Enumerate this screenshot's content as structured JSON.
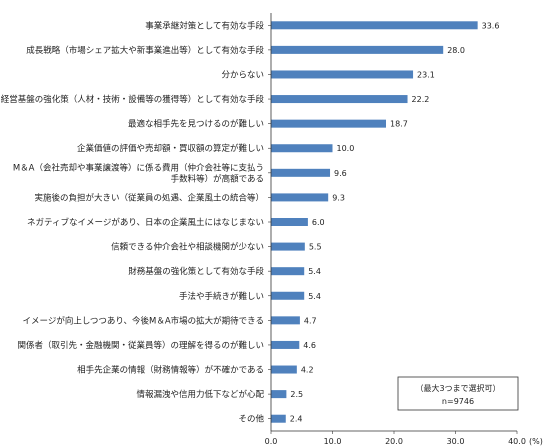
{
  "chart_data": {
    "type": "bar",
    "orientation": "horizontal",
    "categories": [
      [
        "事業承継対策として有効な手段"
      ],
      [
        "成長戦略（市場シェア拡大や新事業進出等）として有効な手段"
      ],
      [
        "分からない"
      ],
      [
        "経営基盤の強化策（人材・技術・設備等の獲得等）として有効な手段"
      ],
      [
        "最適な相手先を見つけるのが難しい"
      ],
      [
        "企業価値の評価や売却額・買収額の算定が難しい"
      ],
      [
        "M＆A（会社売却や事業譲渡等）に係る費用（仲介会社等に支払う",
        "手数料等）が高額である"
      ],
      [
        "実施後の負担が大きい（従業員の処遇、企業風土の統合等）"
      ],
      [
        "ネガティブなイメージがあり、日本の企業風土にはなじまない"
      ],
      [
        "信頼できる仲介会社や相談機関が少ない"
      ],
      [
        "財務基盤の強化策として有効な手段"
      ],
      [
        "手法や手続きが難しい"
      ],
      [
        "イメージが向上しつつあり、今後M＆A市場の拡大が期待できる"
      ],
      [
        "関係者（取引先・金融機関・従業員等）の理解を得るのが難しい"
      ],
      [
        "相手先企業の情報（財務情報等）が不確かである"
      ],
      [
        "情報漏洩や信用力低下などが心配"
      ],
      [
        "その他"
      ]
    ],
    "values": [
      33.6,
      28.0,
      23.1,
      22.2,
      18.7,
      10.0,
      9.6,
      9.3,
      6.0,
      5.5,
      5.4,
      5.4,
      4.7,
      4.6,
      4.2,
      2.5,
      2.4
    ],
    "value_labels": [
      "33.6",
      "28.0",
      "23.1",
      "22.2",
      "18.7",
      "10.0",
      "9.6",
      "9.3",
      "6.0",
      "5.5",
      "5.4",
      "5.4",
      "4.7",
      "4.6",
      "4.2",
      "2.5",
      "2.4"
    ],
    "xlim": [
      0,
      40
    ],
    "xticks": [
      "0.0",
      "10.0",
      "20.0",
      "30.0",
      "40.0"
    ],
    "xunit": "(%)",
    "bar_color": "#4f81bd",
    "annotation": [
      "（最大3つまで選択可）",
      "n=9746"
    ],
    "grid": false
  }
}
